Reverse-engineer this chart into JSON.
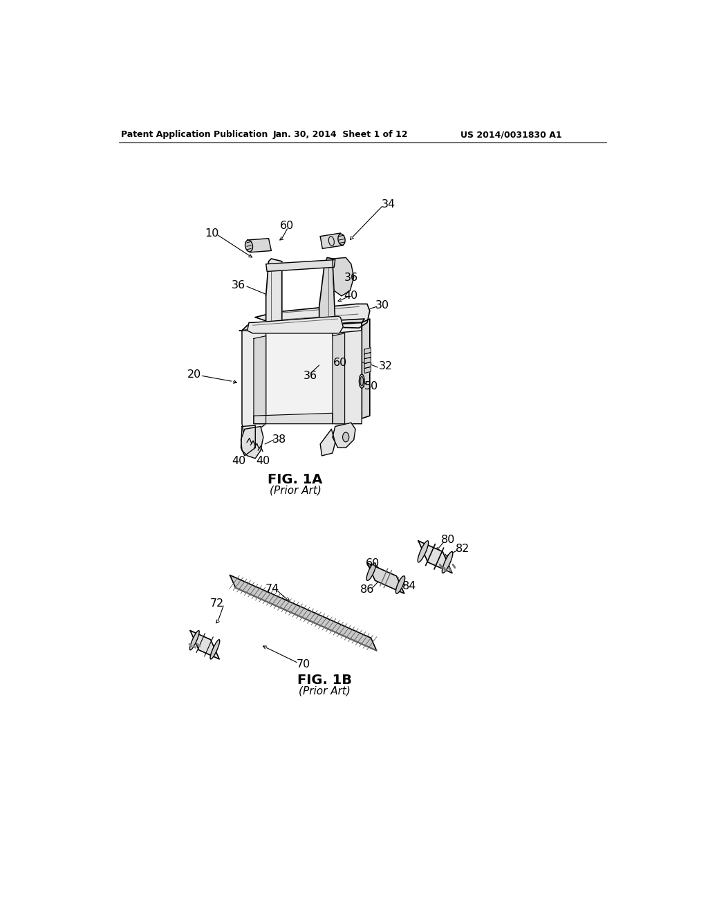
{
  "title_left": "Patent Application Publication",
  "title_center": "Jan. 30, 2014  Sheet 1 of 12",
  "title_right": "US 2014/0031830 A1",
  "fig1a_label": "FIG. 1A",
  "fig1a_sub": "(Prior Art)",
  "fig1b_label": "FIG. 1B",
  "fig1b_sub": "(Prior Art)",
  "background_color": "#ffffff",
  "text_color": "#000000",
  "line_color": "#000000",
  "fig_width": 10.24,
  "fig_height": 13.2,
  "dpi": 100
}
